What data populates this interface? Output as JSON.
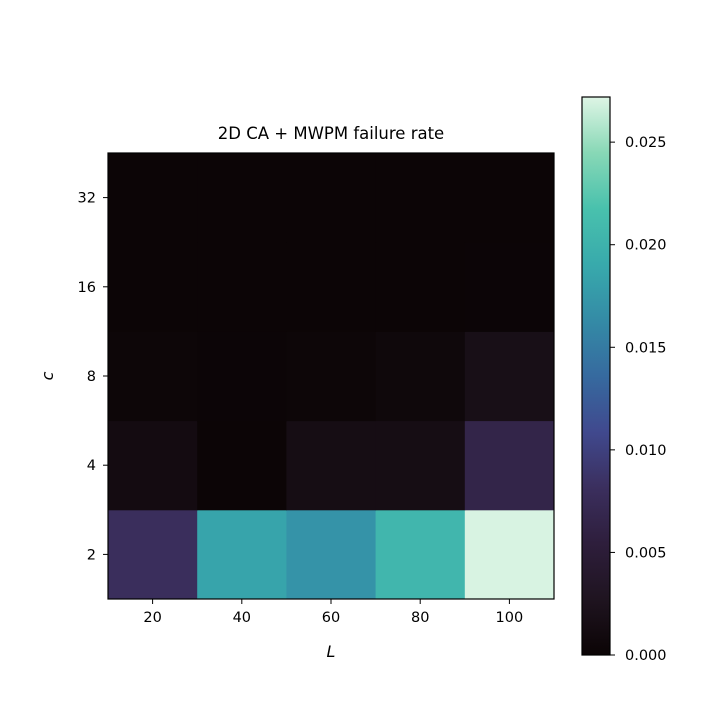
{
  "chart_data": {
    "type": "heatmap",
    "title": "2D CA + MWPM failure rate",
    "xlabel": "L",
    "ylabel": "c",
    "x_categories": [
      "20",
      "40",
      "60",
      "80",
      "100"
    ],
    "y_categories": [
      "2",
      "4",
      "8",
      "16",
      "32"
    ],
    "values": [
      [
        0.008,
        0.0185,
        0.017,
        0.0205,
        0.027
      ],
      [
        0.0012,
        0.0001,
        0.0015,
        0.0015,
        0.0065
      ],
      [
        0.0003,
        0.0002,
        0.0003,
        0.0006,
        0.0018
      ],
      [
        0.0001,
        0.0001,
        0.0001,
        0.0001,
        0.0002
      ],
      [
        0.0001,
        0.0001,
        0.0001,
        0.0001,
        0.0001
      ]
    ],
    "colorbar": {
      "min": 0.0,
      "max": 0.0272,
      "ticks": [
        "0.000",
        "0.005",
        "0.010",
        "0.015",
        "0.020",
        "0.025"
      ]
    },
    "colormap": "mako",
    "grid": false,
    "legend": "colorbar-right"
  }
}
